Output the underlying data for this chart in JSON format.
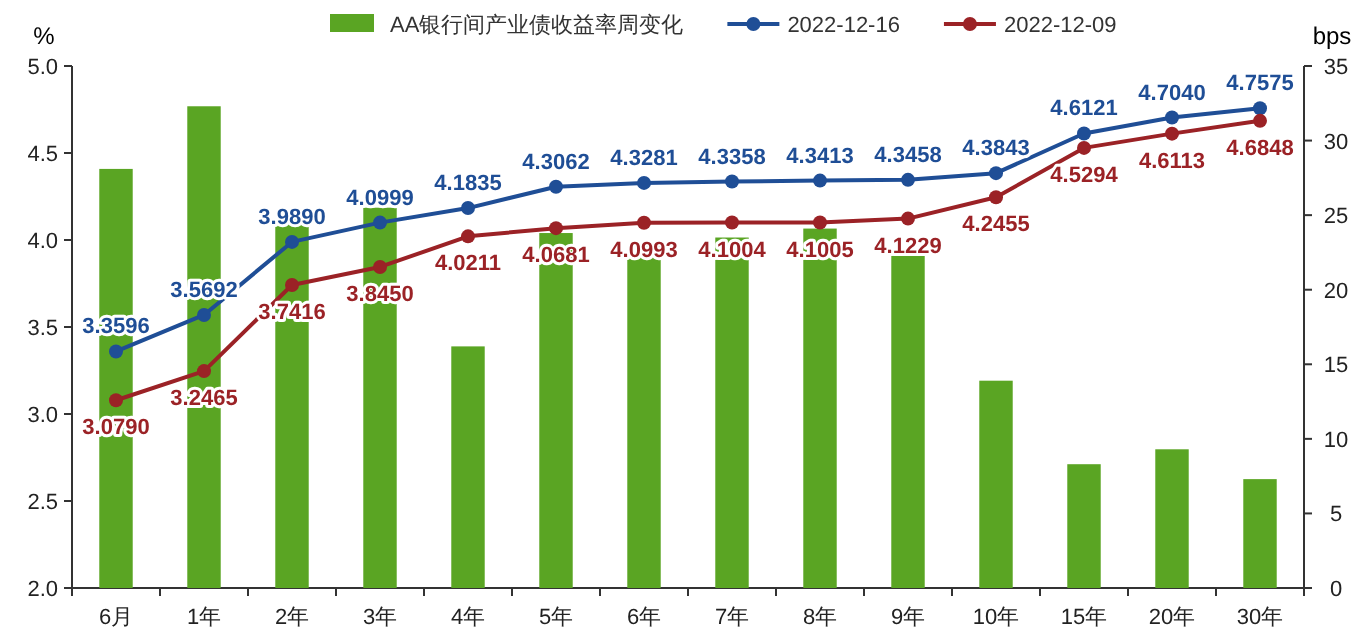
{
  "chart_data": {
    "type": "bar",
    "categories": [
      "6月",
      "1年",
      "2年",
      "3年",
      "4年",
      "5年",
      "6年",
      "7年",
      "8年",
      "9年",
      "10年",
      "15年",
      "20年",
      "30年"
    ],
    "ylabel": "%",
    "y2label": "bps",
    "series": [
      {
        "name": "AA银行间产业债收益率周变化",
        "axis": "y2",
        "color": "#5aa523",
        "values": [
          28.1,
          32.3,
          24.7,
          25.5,
          16.2,
          23.8,
          22.9,
          23.5,
          24.1,
          22.3,
          13.9,
          8.3,
          9.3,
          7.3
        ]
      },
      {
        "name": "2022-12-16",
        "type": "line",
        "color": "#1f4e96",
        "values": [
          3.3596,
          3.5692,
          3.989,
          4.0999,
          4.1835,
          4.3062,
          4.3281,
          4.3358,
          4.3413,
          4.3458,
          4.3843,
          4.6121,
          4.704,
          4.7575
        ],
        "value_labels": [
          "3.3596",
          "3.5692",
          "3.9890",
          "4.0999",
          "4.1835",
          "4.3062",
          "4.3281",
          "4.3358",
          "4.3413",
          "4.3458",
          "4.3843",
          "4.6121",
          "4.7040",
          "4.7575"
        ]
      },
      {
        "name": "2022-12-09",
        "type": "line",
        "color": "#9b2226",
        "values": [
          3.079,
          3.2465,
          3.7416,
          3.845,
          4.0211,
          4.0681,
          4.0993,
          4.1004,
          4.1005,
          4.1229,
          4.2455,
          4.5294,
          4.6113,
          4.6848
        ],
        "value_labels": [
          "3.0790",
          "3.2465",
          "3.7416",
          "3.8450",
          "4.0211",
          "4.0681",
          "4.0993",
          "4.1004",
          "4.1005",
          "4.1229",
          "4.2455",
          "4.5294",
          "4.6113",
          "4.6848"
        ]
      }
    ],
    "ylim": [
      2,
      5
    ],
    "yticks": [
      {
        "value": 2,
        "label": "2.0"
      },
      {
        "value": 2.5,
        "label": "2.5"
      },
      {
        "value": 3,
        "label": "3.0"
      },
      {
        "value": 3.5,
        "label": "3.5"
      },
      {
        "value": 4,
        "label": "4.0"
      },
      {
        "value": 4.5,
        "label": "4.5"
      },
      {
        "value": 5,
        "label": "5.0"
      }
    ],
    "y2lim": [
      0,
      35
    ],
    "y2ticks": [
      0,
      5,
      10,
      15,
      20,
      25,
      30,
      35
    ],
    "marker": "circle",
    "grid": false,
    "legend": "top"
  }
}
